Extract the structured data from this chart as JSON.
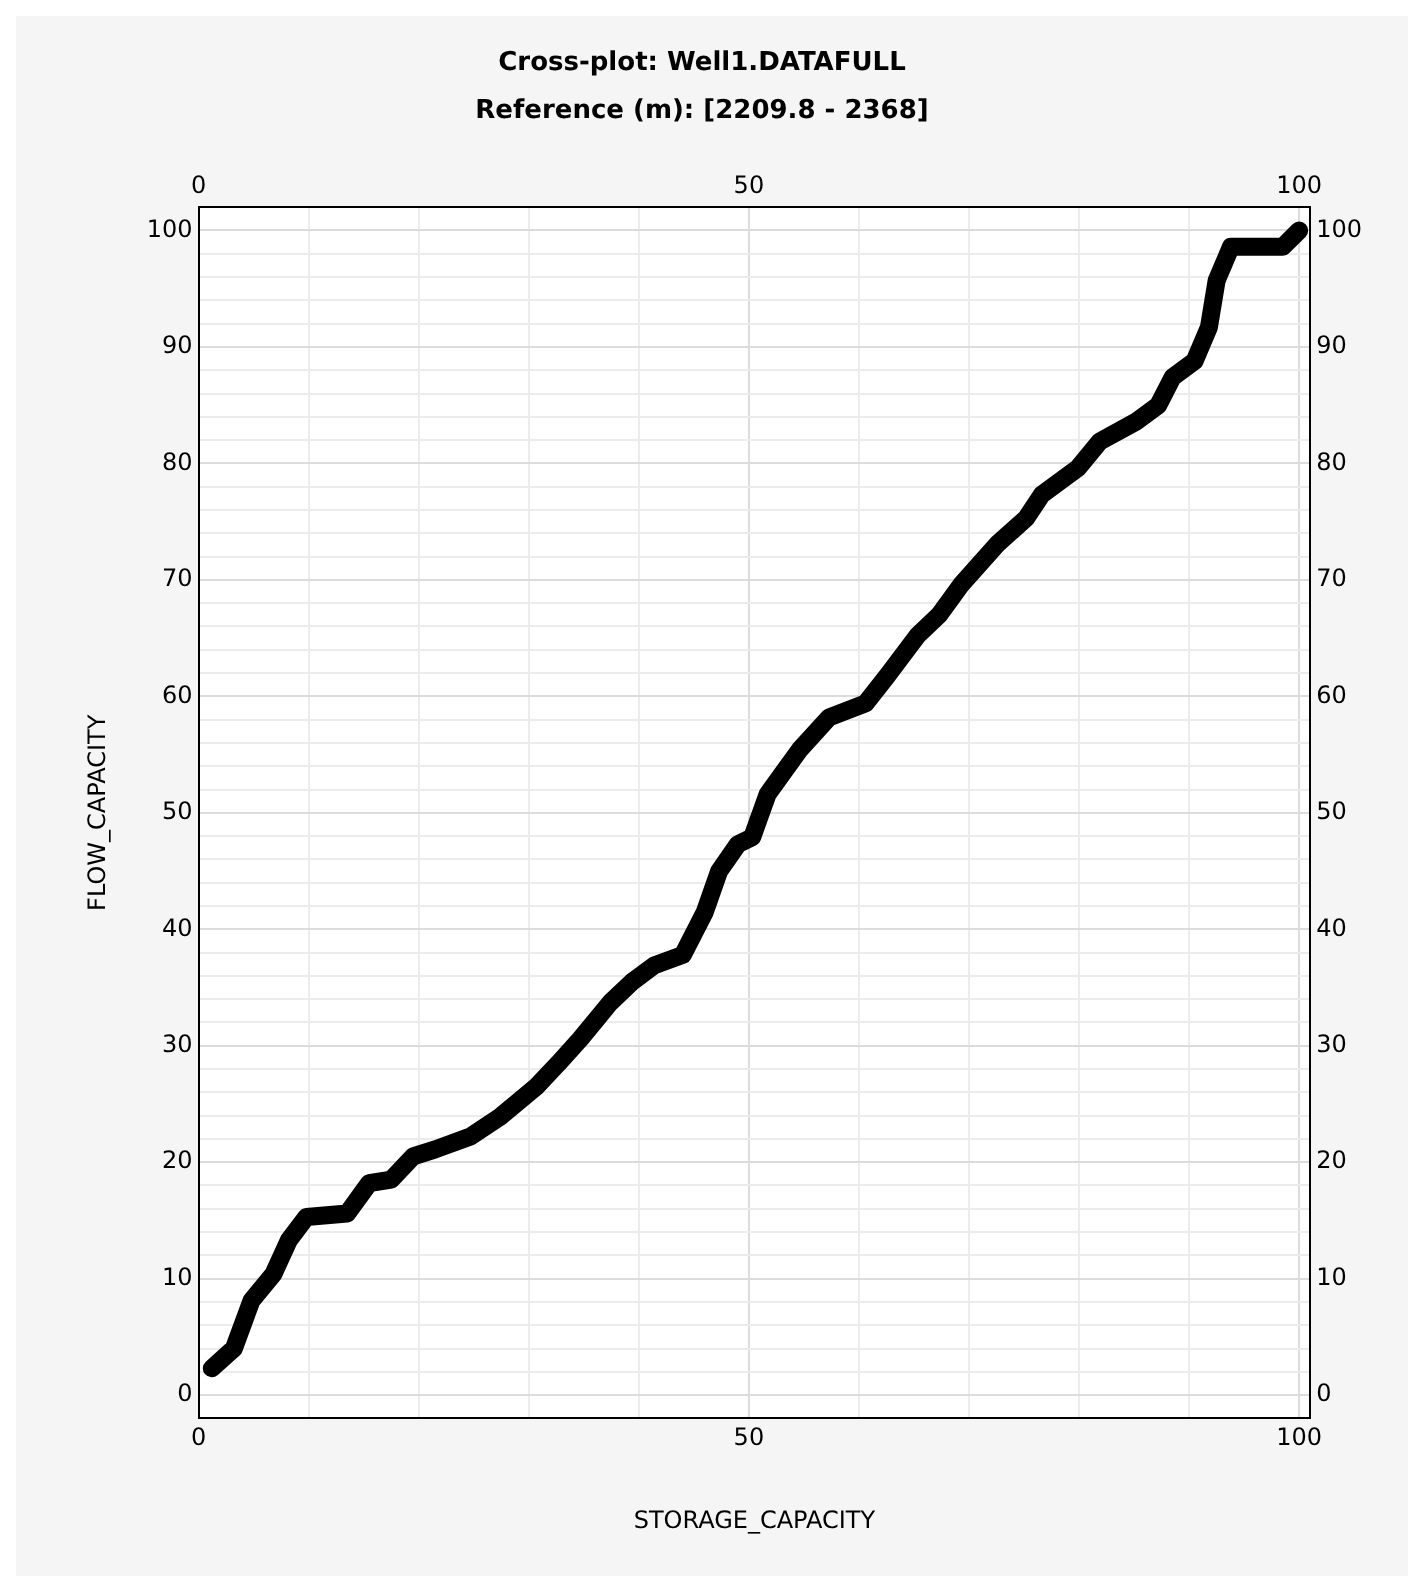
{
  "chart_data": {
    "type": "line",
    "title": "Cross-plot: Well1.DATAFULL",
    "subtitle": "Reference (m): [2209.8 - 2368]",
    "xlabel": "STORAGE_CAPACITY",
    "ylabel": "FLOW_CAPACITY",
    "marker": "none",
    "line_style": "solid",
    "grid": true,
    "legend": false,
    "xlim": [
      0,
      101
    ],
    "xticks": [
      0,
      {
        "value": 10,
        "label": null
      },
      {
        "value": 20,
        "label": null
      },
      {
        "value": 30,
        "label": null
      },
      {
        "value": 40,
        "label": null
      },
      50,
      {
        "value": 60,
        "label": null
      },
      {
        "value": 70,
        "label": null
      },
      {
        "value": 80,
        "label": null
      },
      {
        "value": 90,
        "label": null
      },
      100
    ],
    "x2lim": [
      0,
      101
    ],
    "x2ticks": [
      0,
      50,
      100
    ],
    "ylim": [
      -2,
      102
    ],
    "yticks": [
      0,
      {
        "value": 2,
        "label": null
      },
      {
        "value": 4,
        "label": null
      },
      {
        "value": 6,
        "label": null
      },
      {
        "value": 8,
        "label": null
      },
      10,
      {
        "value": 12,
        "label": null
      },
      {
        "value": 14,
        "label": null
      },
      {
        "value": 16,
        "label": null
      },
      {
        "value": 18,
        "label": null
      },
      20,
      {
        "value": 22,
        "label": null
      },
      {
        "value": 24,
        "label": null
      },
      {
        "value": 26,
        "label": null
      },
      {
        "value": 28,
        "label": null
      },
      30,
      {
        "value": 32,
        "label": null
      },
      {
        "value": 34,
        "label": null
      },
      {
        "value": 36,
        "label": null
      },
      {
        "value": 38,
        "label": null
      },
      40,
      {
        "value": 42,
        "label": null
      },
      {
        "value": 44,
        "label": null
      },
      {
        "value": 46,
        "label": null
      },
      {
        "value": 48,
        "label": null
      },
      50,
      {
        "value": 52,
        "label": null
      },
      {
        "value": 54,
        "label": null
      },
      {
        "value": 56,
        "label": null
      },
      {
        "value": 58,
        "label": null
      },
      60,
      {
        "value": 62,
        "label": null
      },
      {
        "value": 64,
        "label": null
      },
      {
        "value": 66,
        "label": null
      },
      {
        "value": 68,
        "label": null
      },
      70,
      {
        "value": 72,
        "label": null
      },
      {
        "value": 74,
        "label": null
      },
      {
        "value": 76,
        "label": null
      },
      {
        "value": 78,
        "label": null
      },
      80,
      {
        "value": 82,
        "label": null
      },
      {
        "value": 84,
        "label": null
      },
      {
        "value": 86,
        "label": null
      },
      {
        "value": 88,
        "label": null
      },
      90,
      {
        "value": 92,
        "label": null
      },
      {
        "value": 94,
        "label": null
      },
      {
        "value": 96,
        "label": null
      },
      {
        "value": 98,
        "label": null
      },
      100
    ],
    "y2lim": [
      -2,
      102
    ],
    "y2ticks": [
      0,
      10,
      20,
      30,
      40,
      50,
      60,
      70,
      80,
      90,
      100
    ],
    "series": [
      {
        "color": "#000000",
        "x": [
          1.2,
          3.2,
          4.8,
          6.8,
          8.2,
          9.8,
          13.5,
          15.5,
          17.5,
          19.5,
          21.5,
          24.7,
          27.4,
          30.7,
          32.7,
          34.7,
          37.4,
          39.4,
          41.4,
          44,
          46,
          47.3,
          49,
          50.3,
          51.7,
          54.6,
          57.3,
          60.6,
          62.6,
          65.3,
          67.3,
          69.3,
          72.6,
          75.2,
          76.6,
          79.9,
          81.9,
          85.2,
          87.2,
          88.5,
          90.5,
          91.8,
          92.5,
          93.8,
          98.5,
          100
        ],
        "values": [
          2.3,
          4,
          8.1,
          10.4,
          13.3,
          15.3,
          15.6,
          18.2,
          18.5,
          20.5,
          21.1,
          22.2,
          23.9,
          26.5,
          28.5,
          30.6,
          33.7,
          35.5,
          36.9,
          37.8,
          41.5,
          45,
          47.3,
          47.9,
          51.6,
          55.4,
          58.2,
          59.4,
          61.8,
          65.2,
          67,
          69.6,
          73.1,
          75.3,
          77.3,
          79.6,
          81.9,
          83.6,
          85,
          87.4,
          88.8,
          91.7,
          95.7,
          98.6,
          98.6,
          100
        ]
      }
    ]
  }
}
